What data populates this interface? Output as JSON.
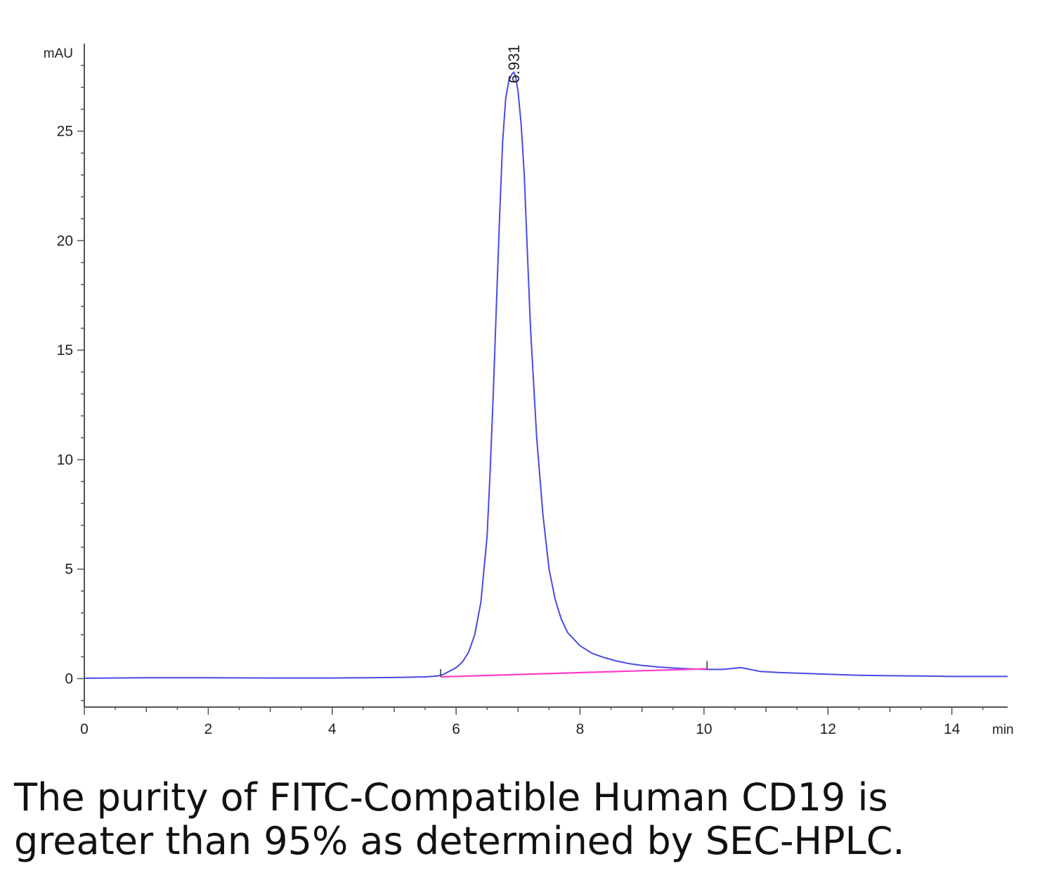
{
  "chart_data": {
    "type": "line",
    "title": "",
    "xlabel": "",
    "ylabel": "",
    "y_unit": "mAU",
    "x_unit": "min",
    "xlim": [
      0,
      14.9
    ],
    "ylim": [
      -1.3,
      29
    ],
    "x_ticks": [
      "0",
      "2",
      "4",
      "6",
      "8",
      "10",
      "12",
      "14"
    ],
    "y_ticks": [
      "0",
      "5",
      "10",
      "15",
      "20",
      "25"
    ],
    "grid": false,
    "legend": "none",
    "series": [
      {
        "color": "#4a4ae6",
        "x": [
          0,
          1,
          2,
          3,
          4,
          5,
          5.5,
          5.7,
          5.8,
          5.9,
          6.0,
          6.1,
          6.2,
          6.3,
          6.4,
          6.5,
          6.55,
          6.6,
          6.65,
          6.7,
          6.75,
          6.8,
          6.85,
          6.9,
          6.931,
          6.96,
          7.0,
          7.05,
          7.1,
          7.15,
          7.2,
          7.3,
          7.4,
          7.5,
          7.6,
          7.7,
          7.8,
          8.0,
          8.2,
          8.4,
          8.6,
          8.8,
          9.0,
          9.3,
          9.6,
          10.0,
          10.3,
          10.6,
          10.9,
          11.2,
          11.5,
          12.0,
          12.5,
          13.0,
          13.5,
          14.0,
          14.5,
          14.9
        ],
        "y": [
          0.02,
          0.04,
          0.04,
          0.03,
          0.03,
          0.05,
          0.08,
          0.12,
          0.2,
          0.35,
          0.5,
          0.75,
          1.2,
          2.0,
          3.5,
          6.5,
          9.5,
          13.0,
          17.0,
          21.0,
          24.5,
          26.5,
          27.3,
          27.6,
          27.7,
          27.5,
          26.8,
          25.3,
          23.0,
          19.5,
          16.0,
          11.0,
          7.5,
          5.0,
          3.6,
          2.7,
          2.1,
          1.5,
          1.15,
          0.95,
          0.8,
          0.68,
          0.6,
          0.52,
          0.47,
          0.42,
          0.42,
          0.5,
          0.33,
          0.28,
          0.25,
          0.2,
          0.15,
          0.13,
          0.12,
          0.1,
          0.1,
          0.1
        ]
      },
      {
        "color": "#ff3ec8",
        "x": [
          5.75,
          10.05
        ],
        "y": [
          0.08,
          0.45
        ]
      }
    ],
    "annotations": [
      {
        "text": "6.931",
        "x": 6.931,
        "y": 27.7
      }
    ]
  },
  "caption": {
    "line1": "The purity of FITC-Compatible Human CD19 is",
    "line2": "greater than 95% as determined by SEC-HPLC."
  },
  "colors": {
    "trace": "#4a4ae6",
    "baseline": "#ff3ec8",
    "axis": "#555555"
  }
}
